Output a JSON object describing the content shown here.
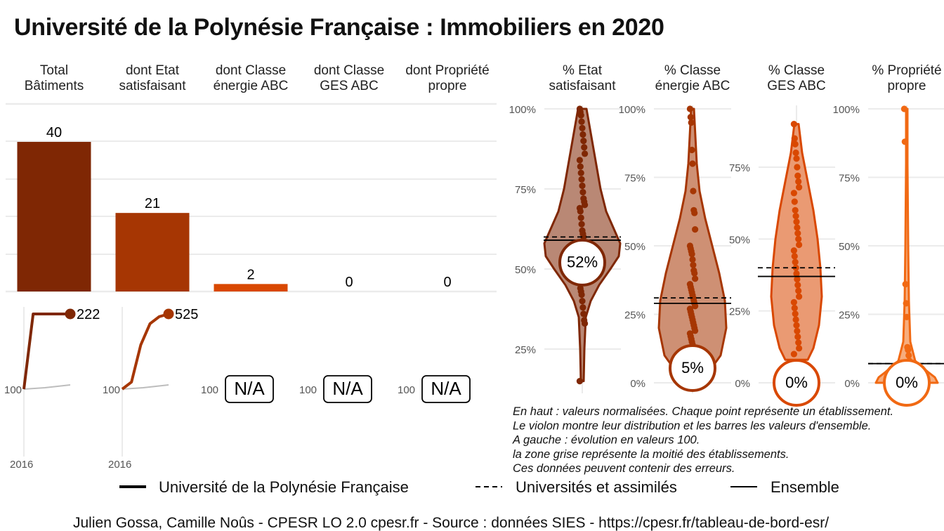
{
  "title": "Université de la Polynésie Française  :  Immobiliers en 2020",
  "colors": {
    "dark": "#7f2704",
    "mid": "#a63603",
    "orange": "#d94801",
    "light": "#f16913",
    "grid": "#ebebeb"
  },
  "chart_data": [
    {
      "type": "bar",
      "categories": [
        "Total Bâtiments",
        "dont Etat satisfaisant",
        "dont Classe énergie ABC",
        "dont Classe GES ABC",
        "dont Propriété propre"
      ],
      "values": [
        40,
        21,
        2,
        0,
        0
      ],
      "labels": [
        "40",
        "21",
        "2",
        "0",
        "0"
      ]
    },
    {
      "type": "line",
      "panels": [
        {
          "x": [
            2016,
            2017,
            2018,
            2019,
            2020,
            2021
          ],
          "values": [
            100,
            222,
            222,
            222,
            222,
            222
          ],
          "end_label": "222",
          "x_label": "2016",
          "base_label": "100"
        },
        {
          "x": [
            2016,
            2017,
            2018,
            2019,
            2020,
            2021
          ],
          "values": [
            100,
            140,
            350,
            470,
            510,
            525
          ],
          "end_label": "525",
          "x_label": "2016",
          "base_label": "100"
        },
        {
          "na_label": "N/A",
          "base_label": "100"
        },
        {
          "na_label": "N/A",
          "base_label": "100"
        },
        {
          "na_label": "N/A",
          "base_label": "100"
        }
      ]
    },
    {
      "type": "scatter",
      "panels": [
        {
          "label_line1": "% Etat",
          "label_line2": "satisfaisant",
          "ticks": [
            "100%",
            "75%",
            "50%",
            "25%"
          ],
          "tick_values": [
            100,
            75,
            50,
            25
          ],
          "ymin": 10,
          "ymax": 100,
          "value": 52,
          "value_label": "52%",
          "universites": 60,
          "ensemble": 59,
          "points": [
            100,
            99,
            98,
            96,
            94,
            92,
            90,
            88,
            86,
            84,
            82,
            80,
            78,
            76,
            74,
            72,
            71,
            70,
            69,
            68,
            66,
            64,
            62,
            61,
            60,
            58,
            57,
            56,
            55,
            54,
            53,
            52,
            51,
            50,
            49,
            48,
            46,
            44,
            43,
            42,
            40,
            38,
            36,
            34,
            33,
            15
          ]
        },
        {
          "label_line1": "% Classe",
          "label_line2": "énergie ABC",
          "ticks": [
            "100%",
            "75%",
            "50%",
            "25%",
            "0%"
          ],
          "tick_values": [
            100,
            75,
            50,
            25,
            0
          ],
          "ymin": 0,
          "ymax": 100,
          "value": 5,
          "value_label": "5%",
          "universites": 31,
          "ensemble": 29,
          "points": [
            100,
            97,
            95,
            85,
            80,
            70,
            63,
            62,
            56,
            50,
            49,
            48,
            47,
            45,
            43,
            41,
            40,
            38,
            36,
            35,
            34,
            33,
            32,
            31,
            30,
            29,
            28,
            27,
            26,
            25,
            24,
            23,
            22,
            21,
            20,
            19,
            18,
            17,
            16,
            15,
            14,
            12,
            10,
            8
          ]
        },
        {
          "label_line1": "% Classe",
          "label_line2": "GES ABC",
          "ticks": [
            "75%",
            "50%",
            "25%",
            "0%"
          ],
          "tick_values": [
            75,
            50,
            25,
            0
          ],
          "ymin": 0,
          "ymax": 90,
          "value": 0,
          "value_label": "0%",
          "universites": 40,
          "ensemble": 37,
          "points": [
            90,
            85,
            83,
            80,
            78,
            75,
            72,
            70,
            68,
            66,
            63,
            60,
            58,
            56,
            54,
            52,
            50,
            48,
            46,
            44,
            42,
            40,
            38,
            36,
            34,
            32,
            30,
            28,
            26,
            24,
            22,
            20,
            18,
            16,
            14,
            12,
            10
          ]
        },
        {
          "label_line1": "% Propriété",
          "label_line2": "propre",
          "ticks": [
            "100%",
            "75%",
            "50%",
            "25%",
            "0%"
          ],
          "tick_values": [
            100,
            75,
            50,
            25,
            0
          ],
          "ymin": 0,
          "ymax": 100,
          "value": 0,
          "value_label": "0%",
          "universites": 7,
          "ensemble": 7,
          "points": [
            100,
            88,
            36,
            29,
            24,
            13,
            12,
            10,
            8,
            6,
            5,
            4,
            3,
            2,
            1,
            0
          ]
        }
      ]
    }
  ],
  "notes": [
    "En haut : valeurs normalisées. Chaque point représente un établissement.",
    "Le violon montre leur distribution et les barres les valeurs d'ensemble.",
    "A gauche : évolution en valeurs 100.",
    "la zone grise représente la moitié des établissements.",
    "Ces données peuvent contenir des erreurs."
  ],
  "legend": [
    {
      "label": "Université de la Polynésie Française",
      "style": "solid-thick"
    },
    {
      "label": "Universités et assimilés",
      "style": "dashed"
    },
    {
      "label": "Ensemble",
      "style": "solid-thin"
    }
  ],
  "caption": "Julien Gossa, Camille Noûs - CPESR LO 2.0 cpesr.fr - Source : données SIES - https://cpesr.fr/tableau-de-bord-esr/"
}
